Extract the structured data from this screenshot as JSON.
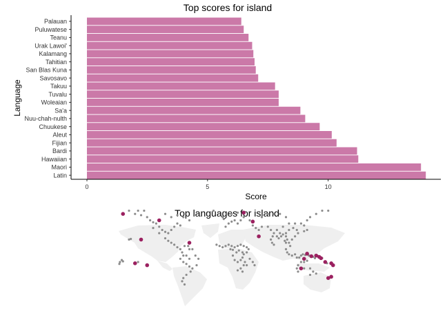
{
  "chart_data": [
    {
      "type": "bar",
      "orientation": "horizontal",
      "title": "Top scores for island",
      "xlabel": "Score",
      "ylabel": "Language",
      "xlim": [
        0,
        14.5
      ],
      "xticks": [
        0,
        5,
        10
      ],
      "grid": false,
      "bar_color": "#cb79a8",
      "categories": [
        "Palauan",
        "Puluwatese",
        "Teanu",
        "Urak Lawoi'",
        "Kalamang",
        "Tahitian",
        "San Blas Kuna",
        "Savosavo",
        "Takuu",
        "Tuvalu",
        "Woleaian",
        "Sa'a",
        "Nuu-chah-nulth",
        "Chuukese",
        "Aleut",
        "Fijian",
        "Bardi",
        "Hawaiian",
        "Maori",
        "Latin"
      ],
      "values": [
        6.4,
        6.5,
        6.7,
        6.85,
        6.9,
        6.95,
        7.0,
        7.1,
        7.8,
        7.95,
        7.95,
        8.85,
        9.05,
        9.65,
        10.15,
        10.35,
        11.2,
        11.25,
        13.85,
        14.05
      ]
    },
    {
      "type": "scatter",
      "subtype": "world-map",
      "title": "Top languages for island",
      "land_color": "#efefef",
      "grey_color": "#8c8c8c",
      "highlight_color": "#9b2160",
      "grey_points": [
        [
          -150,
          60
        ],
        [
          -140,
          58
        ],
        [
          -130,
          55
        ],
        [
          -125,
          50
        ],
        [
          -120,
          47
        ],
        [
          -115,
          45
        ],
        [
          -110,
          40
        ],
        [
          -105,
          35
        ],
        [
          -100,
          32
        ],
        [
          -95,
          30
        ],
        [
          -90,
          35
        ],
        [
          -85,
          40
        ],
        [
          -80,
          45
        ],
        [
          -75,
          42
        ],
        [
          -120,
          38
        ],
        [
          -110,
          30
        ],
        [
          -100,
          22
        ],
        [
          -95,
          18
        ],
        [
          -90,
          15
        ],
        [
          -85,
          12
        ],
        [
          -80,
          8
        ],
        [
          -75,
          5
        ],
        [
          -72,
          0
        ],
        [
          -70,
          -5
        ],
        [
          -75,
          -10
        ],
        [
          -70,
          -15
        ],
        [
          -65,
          -18
        ],
        [
          -60,
          -22
        ],
        [
          -55,
          -25
        ],
        [
          -60,
          -10
        ],
        [
          -65,
          -5
        ],
        [
          -50,
          -5
        ],
        [
          -45,
          -10
        ],
        [
          -48,
          -20
        ],
        [
          -58,
          -30
        ],
        [
          -65,
          -35
        ],
        [
          -70,
          -40
        ],
        [
          -72,
          -45
        ],
        [
          -68,
          -50
        ],
        [
          -135,
          65
        ],
        [
          -145,
          65
        ],
        [
          -160,
          65
        ],
        [
          -100,
          60
        ],
        [
          -90,
          55
        ],
        [
          -80,
          58
        ],
        [
          -70,
          55
        ],
        [
          -60,
          50
        ],
        [
          -55,
          5
        ],
        [
          -60,
          5
        ],
        [
          -62,
          10
        ],
        [
          -68,
          10
        ],
        [
          -15,
          12
        ],
        [
          -10,
          10
        ],
        [
          -5,
          8
        ],
        [
          0,
          10
        ],
        [
          5,
          12
        ],
        [
          10,
          10
        ],
        [
          8,
          5
        ],
        [
          12,
          4
        ],
        [
          15,
          8
        ],
        [
          20,
          10
        ],
        [
          25,
          12
        ],
        [
          30,
          10
        ],
        [
          35,
          8
        ],
        [
          38,
          5
        ],
        [
          35,
          0
        ],
        [
          30,
          -3
        ],
        [
          28,
          -8
        ],
        [
          25,
          -12
        ],
        [
          20,
          -15
        ],
        [
          15,
          -12
        ],
        [
          12,
          -5
        ],
        [
          18,
          0
        ],
        [
          22,
          3
        ],
        [
          28,
          0
        ],
        [
          32,
          -15
        ],
        [
          30,
          -20
        ],
        [
          25,
          -25
        ],
        [
          20,
          -28
        ],
        [
          28,
          -30
        ],
        [
          35,
          -20
        ],
        [
          40,
          -10
        ],
        [
          45,
          -15
        ],
        [
          48,
          -20
        ],
        [
          0,
          40
        ],
        [
          5,
          45
        ],
        [
          10,
          48
        ],
        [
          15,
          50
        ],
        [
          20,
          45
        ],
        [
          25,
          50
        ],
        [
          30,
          55
        ],
        [
          40,
          50
        ],
        [
          45,
          42
        ],
        [
          50,
          38
        ],
        [
          55,
          35
        ],
        [
          60,
          40
        ],
        [
          70,
          40
        ],
        [
          75,
          35
        ],
        [
          80,
          30
        ],
        [
          78,
          25
        ],
        [
          75,
          20
        ],
        [
          77,
          15
        ],
        [
          80,
          12
        ],
        [
          85,
          25
        ],
        [
          88,
          22
        ],
        [
          92,
          25
        ],
        [
          95,
          28
        ],
        [
          100,
          25
        ],
        [
          98,
          18
        ],
        [
          100,
          15
        ],
        [
          102,
          20
        ],
        [
          105,
          15
        ],
        [
          107,
          10
        ],
        [
          110,
          20
        ],
        [
          115,
          25
        ],
        [
          120,
          30
        ],
        [
          118,
          35
        ],
        [
          112,
          38
        ],
        [
          105,
          35
        ],
        [
          100,
          30
        ],
        [
          90,
          30
        ],
        [
          85,
          35
        ],
        [
          95,
          40
        ],
        [
          105,
          45
        ],
        [
          115,
          45
        ],
        [
          125,
          45
        ],
        [
          130,
          42
        ],
        [
          135,
          50
        ],
        [
          140,
          55
        ],
        [
          150,
          60
        ],
        [
          160,
          65
        ],
        [
          170,
          65
        ],
        [
          100,
          55
        ],
        [
          90,
          60
        ],
        [
          80,
          60
        ],
        [
          70,
          60
        ],
        [
          60,
          55
        ],
        [
          100,
          5
        ],
        [
          102,
          0
        ],
        [
          105,
          -3
        ],
        [
          110,
          -5
        ],
        [
          115,
          -3
        ],
        [
          118,
          -8
        ],
        [
          122,
          -8
        ],
        [
          125,
          -5
        ],
        [
          128,
          -3
        ],
        [
          132,
          -4
        ],
        [
          138,
          -5
        ],
        [
          142,
          -6
        ],
        [
          145,
          -7
        ],
        [
          148,
          -9
        ],
        [
          152,
          -5
        ],
        [
          155,
          -7
        ],
        [
          160,
          -9
        ],
        [
          165,
          -15
        ],
        [
          168,
          -17
        ],
        [
          120,
          -20
        ],
        [
          125,
          -15
        ],
        [
          130,
          -15
        ],
        [
          135,
          -13
        ],
        [
          130,
          -25
        ],
        [
          140,
          -25
        ],
        [
          145,
          -30
        ],
        [
          150,
          -33
        ],
        [
          140,
          -35
        ],
        [
          120,
          -30
        ],
        [
          118,
          -25
        ],
        [
          170,
          -40
        ],
        [
          175,
          -38
        ],
        [
          -175,
          -15
        ],
        [
          -150,
          -17
        ],
        [
          -145,
          -15
        ],
        [
          -160,
          20
        ],
        [
          -157,
          21
        ],
        [
          -170,
          -14
        ],
        [
          -172,
          -12
        ],
        [
          -176,
          -18
        ],
        [
          130,
          33
        ],
        [
          135,
          35
        ],
        [
          -5,
          55
        ],
        [
          -3,
          52
        ],
        [
          10,
          60
        ],
        [
          20,
          62
        ],
        [
          -20,
          65
        ]
      ],
      "highlight_points": [
        [
          -170,
          60
        ],
        [
          -140,
          20
        ],
        [
          -110,
          50
        ],
        [
          -60,
          15
        ],
        [
          -130,
          -20
        ],
        [
          -150,
          -17
        ],
        [
          30,
          62
        ],
        [
          45,
          48
        ],
        [
          55,
          25
        ],
        [
          135,
          -2
        ],
        [
          142,
          -6
        ],
        [
          150,
          -5
        ],
        [
          155,
          -7
        ],
        [
          158,
          -9
        ],
        [
          165,
          -15
        ],
        [
          175,
          -17
        ],
        [
          170,
          -40
        ],
        [
          175,
          -38
        ],
        [
          130,
          -10
        ],
        [
          125,
          -25
        ],
        [
          178,
          -20
        ]
      ]
    }
  ]
}
